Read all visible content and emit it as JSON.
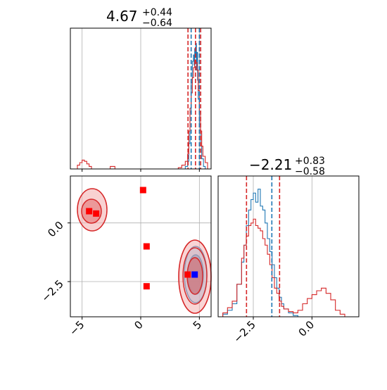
{
  "chart_data": [
    {
      "type": "histogram",
      "panel": "param1-marginal",
      "title": {
        "main": "4.67",
        "sup": "+0.44",
        "sub": "−0.64"
      },
      "xlim": [
        -6,
        6
      ],
      "grid": true,
      "xticks": [
        -5,
        0,
        5
      ],
      "tick_labels_shown": false,
      "series": [
        {
          "color": "#1f77b4",
          "bins": [
            [
              3.6,
              0.0
            ],
            [
              3.8,
              0.02
            ],
            [
              4.0,
              0.06
            ],
            [
              4.1,
              0.2
            ],
            [
              4.2,
              0.45
            ],
            [
              4.3,
              0.68
            ],
            [
              4.4,
              0.85
            ],
            [
              4.5,
              0.9
            ],
            [
              4.55,
              0.82
            ],
            [
              4.6,
              0.95
            ],
            [
              4.65,
              0.88
            ],
            [
              4.7,
              0.99
            ],
            [
              4.75,
              0.78
            ],
            [
              4.8,
              0.92
            ],
            [
              4.85,
              0.7
            ],
            [
              4.9,
              0.55
            ],
            [
              5.0,
              0.35
            ],
            [
              5.1,
              0.18
            ],
            [
              5.2,
              0.08
            ],
            [
              5.35,
              0.02
            ],
            [
              5.5,
              0.0
            ]
          ]
        },
        {
          "color": "#d62728",
          "bins": [
            [
              -5.6,
              0.0
            ],
            [
              -5.4,
              0.03
            ],
            [
              -5.2,
              0.05
            ],
            [
              -5.0,
              0.07
            ],
            [
              -4.8,
              0.06
            ],
            [
              -4.6,
              0.04
            ],
            [
              -4.4,
              0.02
            ],
            [
              -4.2,
              0.0
            ],
            [
              -3.0,
              0.0
            ],
            [
              -2.6,
              0.02
            ],
            [
              -2.2,
              0.0
            ],
            [
              3.0,
              0.0
            ],
            [
              3.2,
              0.01
            ],
            [
              3.5,
              0.03
            ],
            [
              3.8,
              0.06
            ],
            [
              4.0,
              0.12
            ],
            [
              4.1,
              0.3
            ],
            [
              4.2,
              0.48
            ],
            [
              4.3,
              0.6
            ],
            [
              4.4,
              0.72
            ],
            [
              4.5,
              0.8
            ],
            [
              4.6,
              0.86
            ],
            [
              4.7,
              0.84
            ],
            [
              4.8,
              0.78
            ],
            [
              4.9,
              0.62
            ],
            [
              5.0,
              0.45
            ],
            [
              5.1,
              0.3
            ],
            [
              5.2,
              0.18
            ],
            [
              5.3,
              0.1
            ],
            [
              5.5,
              0.05
            ],
            [
              5.7,
              0.0
            ]
          ]
        }
      ],
      "quantiles": [
        {
          "color": "#d62728",
          "x": [
            4.03,
            4.67,
            5.11
          ]
        },
        {
          "color": "#1f77b4",
          "x": [
            4.3,
            5.0
          ]
        }
      ]
    },
    {
      "type": "scatter",
      "panel": "joint-2d",
      "xlim": [
        -6,
        6
      ],
      "ylim": [
        -4,
        2
      ],
      "grid": true,
      "xticks": [
        "−5",
        "0",
        "5"
      ],
      "yticks": [
        "0.0",
        "−2.5"
      ],
      "xtick_values": [
        -5,
        0,
        5
      ],
      "ytick_values": [
        0,
        -2.5
      ],
      "red_markers": [
        [
          0.2,
          1.4
        ],
        [
          -4.4,
          0.5
        ],
        [
          -3.8,
          0.4
        ],
        [
          0.5,
          -1.0
        ],
        [
          0.5,
          -2.7
        ],
        [
          4.0,
          -2.2
        ]
      ],
      "blue_markers": [
        [
          4.6,
          -2.2
        ]
      ],
      "red_color": "#ff0000",
      "blue_color": "#0000ff"
    },
    {
      "type": "histogram",
      "panel": "param2-marginal",
      "title": {
        "main": "−2.21",
        "sup": "+0.83",
        "sub": "−0.58"
      },
      "xlim": [
        -4,
        2
      ],
      "grid": true,
      "xticks": [
        "−2.5",
        "0.0"
      ],
      "xtick_values": [
        -2.5,
        0
      ],
      "series": [
        {
          "color": "#1f77b4",
          "bins": [
            [
              -4.0,
              0.0
            ],
            [
              -3.8,
              0.02
            ],
            [
              -3.6,
              0.05
            ],
            [
              -3.4,
              0.1
            ],
            [
              -3.2,
              0.25
            ],
            [
              -3.0,
              0.42
            ],
            [
              -2.9,
              0.55
            ],
            [
              -2.8,
              0.7
            ],
            [
              -2.7,
              0.82
            ],
            [
              -2.6,
              0.9
            ],
            [
              -2.5,
              0.95
            ],
            [
              -2.4,
              0.88
            ],
            [
              -2.3,
              0.98
            ],
            [
              -2.2,
              0.85
            ],
            [
              -2.1,
              0.82
            ],
            [
              -2.0,
              0.72
            ],
            [
              -1.9,
              0.6
            ],
            [
              -1.8,
              0.5
            ],
            [
              -1.7,
              0.4
            ],
            [
              -1.6,
              0.3
            ],
            [
              -1.5,
              0.22
            ],
            [
              -1.4,
              0.15
            ],
            [
              -1.3,
              0.1
            ],
            [
              -1.2,
              0.06
            ],
            [
              -1.0,
              0.03
            ],
            [
              -0.8,
              0.01
            ],
            [
              -0.6,
              0.0
            ]
          ]
        },
        {
          "color": "#d62728",
          "bins": [
            [
              -4.0,
              0.0
            ],
            [
              -3.8,
              0.03
            ],
            [
              -3.6,
              0.07
            ],
            [
              -3.4,
              0.12
            ],
            [
              -3.2,
              0.25
            ],
            [
              -3.0,
              0.45
            ],
            [
              -2.9,
              0.55
            ],
            [
              -2.8,
              0.62
            ],
            [
              -2.7,
              0.7
            ],
            [
              -2.6,
              0.72
            ],
            [
              -2.5,
              0.75
            ],
            [
              -2.4,
              0.7
            ],
            [
              -2.3,
              0.68
            ],
            [
              -2.2,
              0.66
            ],
            [
              -2.1,
              0.6
            ],
            [
              -2.0,
              0.55
            ],
            [
              -1.9,
              0.48
            ],
            [
              -1.8,
              0.4
            ],
            [
              -1.7,
              0.3
            ],
            [
              -1.6,
              0.22
            ],
            [
              -1.5,
              0.18
            ],
            [
              -1.4,
              0.12
            ],
            [
              -1.3,
              0.08
            ],
            [
              -1.2,
              0.06
            ],
            [
              -1.0,
              0.04
            ],
            [
              -0.8,
              0.03
            ],
            [
              -0.6,
              0.05
            ],
            [
              -0.4,
              0.1
            ],
            [
              -0.2,
              0.14
            ],
            [
              0.0,
              0.17
            ],
            [
              0.2,
              0.2
            ],
            [
              0.4,
              0.22
            ],
            [
              0.6,
              0.18
            ],
            [
              0.8,
              0.13
            ],
            [
              1.0,
              0.05
            ],
            [
              1.2,
              0.02
            ],
            [
              1.4,
              0.0
            ]
          ]
        }
      ],
      "quantiles": [
        {
          "color": "#d62728",
          "x": [
            -2.79,
            -1.38
          ]
        },
        {
          "color": "#1f77b4",
          "x": [
            -1.71
          ]
        }
      ]
    }
  ]
}
